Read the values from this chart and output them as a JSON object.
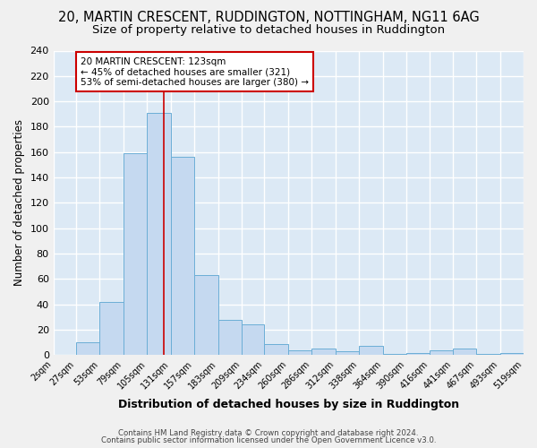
{
  "title1": "20, MARTIN CRESCENT, RUDDINGTON, NOTTINGHAM, NG11 6AG",
  "title2": "Size of property relative to detached houses in Ruddington",
  "xlabel": "Distribution of detached houses by size in Ruddington",
  "ylabel": "Number of detached properties",
  "footer1": "Contains HM Land Registry data © Crown copyright and database right 2024.",
  "footer2": "Contains public sector information licensed under the Open Government Licence v3.0.",
  "bar_labels": [
    "2sqm",
    "27sqm",
    "53sqm",
    "79sqm",
    "105sqm",
    "131sqm",
    "157sqm",
    "183sqm",
    "209sqm",
    "234sqm",
    "260sqm",
    "286sqm",
    "312sqm",
    "338sqm",
    "364sqm",
    "390sqm",
    "416sqm",
    "441sqm",
    "467sqm",
    "493sqm",
    "519sqm"
  ],
  "bar_values": [
    0,
    10,
    42,
    159,
    191,
    156,
    63,
    28,
    24,
    9,
    4,
    5,
    3,
    7,
    1,
    2,
    4,
    5,
    1,
    2,
    0
  ],
  "bar_edges": [
    2,
    27,
    53,
    79,
    105,
    131,
    157,
    183,
    209,
    234,
    260,
    286,
    312,
    338,
    364,
    390,
    416,
    441,
    467,
    493,
    519
  ],
  "bar_color": "#c5d9f0",
  "bar_edge_color": "#6baed6",
  "vline_x": 123,
  "vline_color": "#cc0000",
  "annotation_line1": "20 MARTIN CRESCENT: 123sqm",
  "annotation_line2": "← 45% of detached houses are smaller (321)",
  "annotation_line3": "53% of semi-detached houses are larger (380) →",
  "annotation_box_color": "#ffffff",
  "annotation_box_edge": "#cc0000",
  "ylim": [
    0,
    240
  ],
  "yticks": [
    0,
    20,
    40,
    60,
    80,
    100,
    120,
    140,
    160,
    180,
    200,
    220,
    240
  ],
  "bg_color": "#dce9f5",
  "grid_color": "#ffffff",
  "fig_bg_color": "#f0f0f0",
  "title1_fontsize": 10.5,
  "title2_fontsize": 9.5,
  "title1_bold": false
}
